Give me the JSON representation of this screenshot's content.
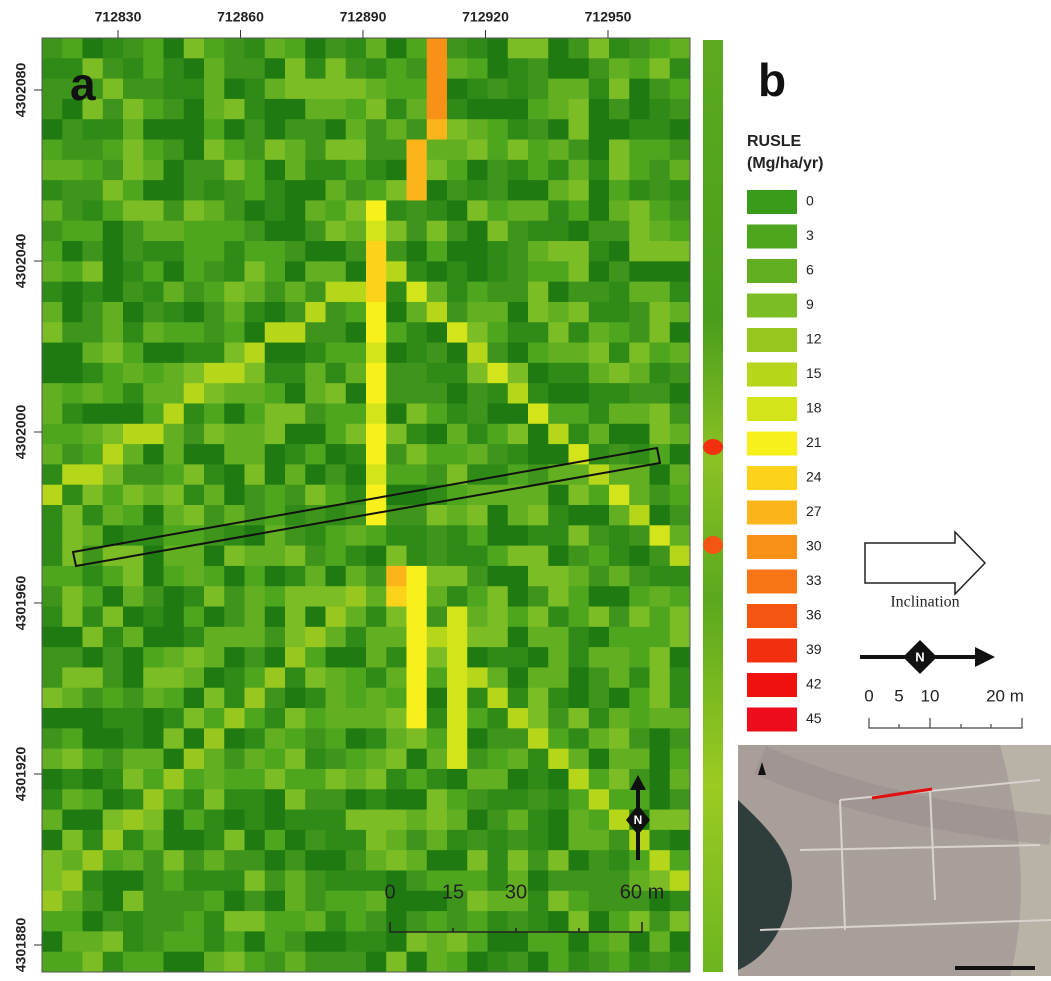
{
  "panel_a": {
    "label": "a",
    "x_ticks": [
      712830,
      712860,
      712890,
      712920,
      712950
    ],
    "y_ticks": [
      4302080,
      4302040,
      4302000,
      4301960,
      4301920,
      4301880
    ],
    "north": "N",
    "scale_labels": [
      "0",
      "15",
      "30",
      "60 m"
    ]
  },
  "panel_b": {
    "label": "b",
    "legend_title": [
      "RUSLE",
      "(Mg/ha/yr)"
    ],
    "legend": [
      {
        "value": 0,
        "color": "#3a9a1a"
      },
      {
        "value": 3,
        "color": "#4ea51e"
      },
      {
        "value": 6,
        "color": "#62b022"
      },
      {
        "value": 9,
        "color": "#7cbd25"
      },
      {
        "value": 12,
        "color": "#98c81f"
      },
      {
        "value": 15,
        "color": "#b6d61a"
      },
      {
        "value": 18,
        "color": "#d3e41a"
      },
      {
        "value": 21,
        "color": "#f7f01a"
      },
      {
        "value": 24,
        "color": "#fcd21a"
      },
      {
        "value": 27,
        "color": "#fbb51a"
      },
      {
        "value": 30,
        "color": "#f99116"
      },
      {
        "value": 33,
        "color": "#f77514"
      },
      {
        "value": 36,
        "color": "#f45512"
      },
      {
        "value": 39,
        "color": "#f23010"
      },
      {
        "value": 42,
        "color": "#f0100e"
      },
      {
        "value": 45,
        "color": "#ee0c1c"
      }
    ],
    "inclination": "Inclination",
    "north": "N",
    "scale_labels": [
      "0",
      "5",
      "10",
      "20 m"
    ]
  }
}
